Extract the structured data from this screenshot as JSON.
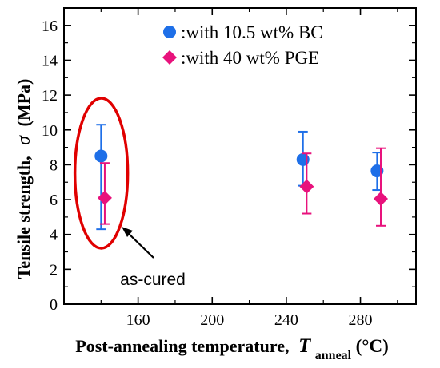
{
  "chart_data": {
    "type": "scatter",
    "xlabel": {
      "main": "Post-annealing temperature,",
      "symbol": "T",
      "subscript": "anneal",
      "unit": "(°C)"
    },
    "ylabel": {
      "main": "Tensile strength,",
      "symbol": "σ",
      "unit": "(MPa)"
    },
    "xlim": [
      120,
      310
    ],
    "ylim": [
      0,
      17
    ],
    "xticks": [
      160,
      200,
      240,
      280
    ],
    "yticks": [
      0,
      2,
      4,
      6,
      8,
      10,
      12,
      14,
      16
    ],
    "grid": false,
    "legend_position": "top-right",
    "series": [
      {
        "name": ":with 10.5 wt% BC",
        "marker": "circle",
        "color": "#1e6fe8",
        "points": [
          {
            "x": 140,
            "y": 8.5,
            "ylow": 4.3,
            "yhigh": 10.3
          },
          {
            "x": 249,
            "y": 8.3,
            "ylow": 6.8,
            "yhigh": 9.9
          },
          {
            "x": 289,
            "y": 7.65,
            "ylow": 6.55,
            "yhigh": 8.7
          }
        ]
      },
      {
        "name": ":with 40 wt% PGE",
        "marker": "diamond",
        "color": "#e8127c",
        "points": [
          {
            "x": 142,
            "y": 6.1,
            "ylow": 4.6,
            "yhigh": 8.1
          },
          {
            "x": 251,
            "y": 6.75,
            "ylow": 5.2,
            "yhigh": 8.65
          },
          {
            "x": 291,
            "y": 6.05,
            "ylow": 4.5,
            "yhigh": 8.95
          }
        ]
      }
    ],
    "annotation": {
      "text": "as-cured",
      "ellipse_color": "#e00000",
      "arrow_color": "#000000",
      "highlight_x": 141
    }
  }
}
